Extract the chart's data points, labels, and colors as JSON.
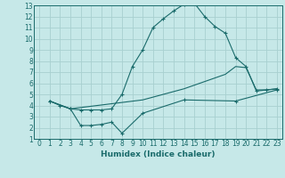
{
  "xlabel": "Humidex (Indice chaleur)",
  "background_color": "#c6e8e8",
  "grid_color": "#a8d0d0",
  "line_color": "#1a6b6b",
  "xlim": [
    -0.5,
    23.5
  ],
  "ylim": [
    1,
    13
  ],
  "xticks": [
    0,
    1,
    2,
    3,
    4,
    5,
    6,
    7,
    8,
    9,
    10,
    11,
    12,
    13,
    14,
    15,
    16,
    17,
    18,
    19,
    20,
    21,
    22,
    23
  ],
  "yticks": [
    1,
    2,
    3,
    4,
    5,
    6,
    7,
    8,
    9,
    10,
    11,
    12,
    13
  ],
  "line1_x": [
    1,
    2,
    3,
    4,
    5,
    6,
    7,
    8,
    9,
    10,
    11,
    12,
    13,
    14,
    15,
    16,
    17,
    18,
    19,
    20,
    21,
    22,
    23
  ],
  "line1_y": [
    4.4,
    4.0,
    3.7,
    3.6,
    3.6,
    3.6,
    3.7,
    5.0,
    7.5,
    9.0,
    11.0,
    11.8,
    12.5,
    13.1,
    13.2,
    12.0,
    11.1,
    10.5,
    8.3,
    7.5,
    5.3,
    5.4,
    5.5
  ],
  "line2_x": [
    1,
    3,
    10,
    14,
    18,
    19,
    20,
    21,
    22,
    23
  ],
  "line2_y": [
    4.4,
    3.7,
    4.5,
    5.5,
    6.8,
    7.5,
    7.4,
    5.4,
    5.4,
    5.5
  ],
  "line3_x": [
    1,
    3,
    4,
    5,
    6,
    7,
    8,
    10,
    14,
    19,
    23
  ],
  "line3_y": [
    4.4,
    3.7,
    2.2,
    2.2,
    2.3,
    2.5,
    1.5,
    3.3,
    4.5,
    4.4,
    5.4
  ],
  "tick_fontsize": 5.5,
  "xlabel_fontsize": 6.5
}
